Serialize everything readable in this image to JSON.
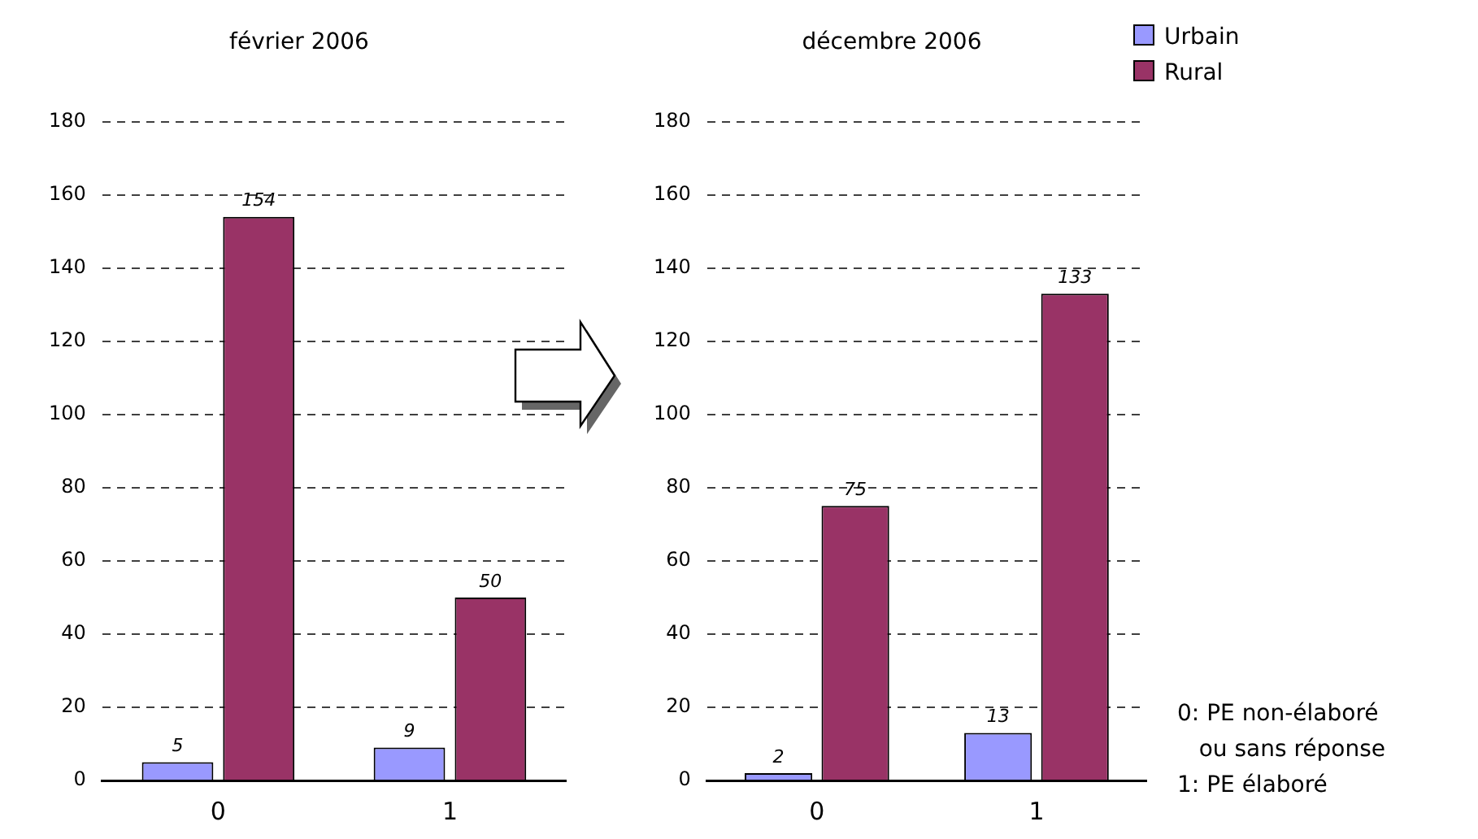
{
  "chart_data": [
    {
      "type": "bar",
      "title": "février 2006",
      "categories": [
        "0",
        "1"
      ],
      "series": [
        {
          "color": "#9999ff",
          "values": [
            5,
            9
          ]
        },
        {
          "color": "#993366",
          "values": [
            154,
            50
          ]
        }
      ],
      "ylim": [
        0,
        180
      ],
      "yticks": [
        0,
        20,
        40,
        60,
        80,
        100,
        120,
        140,
        160,
        180
      ],
      "grid": "y",
      "data_labels": true,
      "legend": false
    },
    {
      "type": "bar",
      "title": "décembre 2006",
      "categories": [
        "0",
        "1"
      ],
      "series": [
        {
          "name": "Urbain",
          "color": "#9999ff",
          "values": [
            2,
            13
          ]
        },
        {
          "name": "Rural",
          "color": "#993366",
          "values": [
            75,
            133
          ]
        }
      ],
      "ylim": [
        0,
        180
      ],
      "yticks": [
        0,
        20,
        40,
        60,
        80,
        100,
        120,
        140,
        160,
        180
      ],
      "grid": "y",
      "data_labels": true,
      "legend": "top right",
      "annotations": [
        "0: PE non-élaboré\n   ou sans réponse",
        "1: PE élaboré"
      ]
    }
  ]
}
